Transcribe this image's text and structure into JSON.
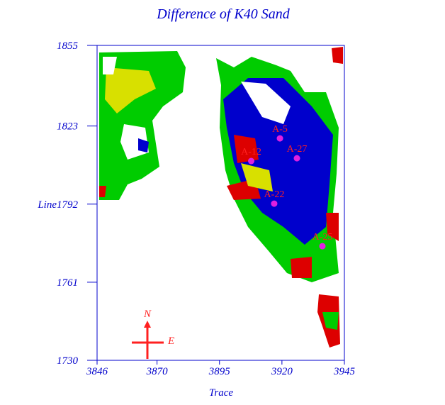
{
  "chart_data": {
    "type": "map",
    "title": "Difference of K40 Sand",
    "xlabel": "Trace",
    "xlim": [
      3846,
      3945
    ],
    "ylim": [
      1730,
      1855
    ],
    "xticks": [
      3846,
      3870,
      3895,
      3920,
      3945
    ],
    "yticks": [
      1855,
      1823,
      {
        "value": 1792,
        "label": "Line1792"
      },
      1761,
      1730
    ],
    "wells": {
      "color": "#e020e0",
      "names": [
        "A-5",
        "A-12",
        "A-27",
        "A-22",
        "A-25"
      ],
      "x": [
        3919.2,
        3907.7,
        3926,
        3916.9,
        3936.2
      ],
      "y": [
        1818.1,
        1809.1,
        1810.2,
        1792.2,
        1775.3
      ]
    },
    "compass": {
      "north": "N",
      "east": "E"
    }
  }
}
